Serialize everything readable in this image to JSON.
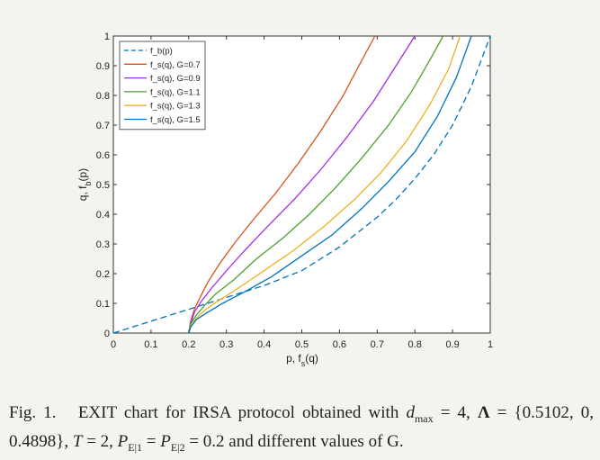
{
  "chart_data": {
    "type": "line",
    "xlabel": "p, f_s(q)",
    "ylabel": "q, f_b(p)",
    "xlim": [
      0,
      1
    ],
    "ylim": [
      0,
      1
    ],
    "xticks": [
      "0",
      "0.1",
      "0.2",
      "0.3",
      "0.4",
      "0.5",
      "0.6",
      "0.7",
      "0.8",
      "0.9",
      "1"
    ],
    "yticks": [
      "0",
      "0.1",
      "0.2",
      "0.3",
      "0.4",
      "0.5",
      "0.6",
      "0.7",
      "0.8",
      "0.9",
      "1"
    ],
    "grid": false,
    "legend_position": "top-left",
    "series": [
      {
        "name": "f_b(p)",
        "style": "dashed",
        "color": "#0072BD",
        "x": [
          0,
          0.05,
          0.1,
          0.15,
          0.2,
          0.25,
          0.3,
          0.35,
          0.4,
          0.45,
          0.5,
          0.55,
          0.6,
          0.65,
          0.7,
          0.75,
          0.8,
          0.85,
          0.9,
          0.95,
          1.0
        ],
        "y": [
          0,
          0.02,
          0.04,
          0.06,
          0.08,
          0.1,
          0.12,
          0.14,
          0.16,
          0.185,
          0.21,
          0.25,
          0.29,
          0.34,
          0.39,
          0.45,
          0.52,
          0.6,
          0.7,
          0.83,
          1.0
        ]
      },
      {
        "name": "f_s(q), G=0.7",
        "style": "solid",
        "color": "#D95319",
        "x": [
          0.2,
          0.205,
          0.215,
          0.23,
          0.25,
          0.28,
          0.32,
          0.37,
          0.43,
          0.49,
          0.55,
          0.61,
          0.66,
          0.694
        ],
        "y": [
          0,
          0.04,
          0.08,
          0.12,
          0.17,
          0.23,
          0.3,
          0.38,
          0.47,
          0.57,
          0.68,
          0.8,
          0.92,
          1.0
        ]
      },
      {
        "name": "f_s(q), G=0.9",
        "style": "solid",
        "color": "#A02FEF",
        "x": [
          0.2,
          0.205,
          0.215,
          0.235,
          0.26,
          0.3,
          0.35,
          0.41,
          0.48,
          0.55,
          0.62,
          0.69,
          0.75,
          0.8
        ],
        "y": [
          0,
          0.03,
          0.07,
          0.11,
          0.15,
          0.21,
          0.28,
          0.36,
          0.45,
          0.55,
          0.66,
          0.78,
          0.9,
          1.0
        ]
      },
      {
        "name": "f_s(q), G=1.1",
        "style": "solid",
        "color": "#4DA02F",
        "x": [
          0.2,
          0.205,
          0.22,
          0.24,
          0.27,
          0.32,
          0.38,
          0.45,
          0.52,
          0.59,
          0.66,
          0.73,
          0.79,
          0.84,
          0.875
        ],
        "y": [
          0,
          0.03,
          0.06,
          0.09,
          0.13,
          0.18,
          0.25,
          0.32,
          0.4,
          0.49,
          0.59,
          0.7,
          0.81,
          0.92,
          1.0
        ]
      },
      {
        "name": "f_s(q), G=1.3",
        "style": "solid",
        "color": "#EDB120",
        "x": [
          0.2,
          0.205,
          0.22,
          0.245,
          0.28,
          0.33,
          0.4,
          0.48,
          0.56,
          0.64,
          0.71,
          0.78,
          0.84,
          0.89,
          0.92
        ],
        "y": [
          0,
          0.02,
          0.05,
          0.08,
          0.11,
          0.15,
          0.21,
          0.28,
          0.36,
          0.45,
          0.54,
          0.65,
          0.77,
          0.89,
          1.0
        ]
      },
      {
        "name": "f_s(q), G=1.5",
        "style": "solid",
        "color": "#0072BD",
        "x": [
          0.2,
          0.205,
          0.22,
          0.25,
          0.29,
          0.35,
          0.42,
          0.5,
          0.58,
          0.66,
          0.73,
          0.8,
          0.86,
          0.91,
          0.95
        ],
        "y": [
          0,
          0.02,
          0.045,
          0.07,
          0.1,
          0.14,
          0.19,
          0.26,
          0.33,
          0.42,
          0.51,
          0.61,
          0.73,
          0.86,
          1.0
        ]
      }
    ],
    "legend_labels": [
      "f_b(p)",
      "f_s(q), G=0.7",
      "f_s(q), G=0.9",
      "f_s(q), G=1.1",
      "f_s(q), G=1.3",
      "f_s(q), G=1.5"
    ]
  },
  "caption": {
    "label": "Fig. 1.",
    "text": "EXIT chart for IRSA protocol obtained with d_max = 4, Λ = {0.5102, 0, 0.4898}, T = 2, P_E|1 = P_E|2 = 0.2 and different values of G."
  }
}
